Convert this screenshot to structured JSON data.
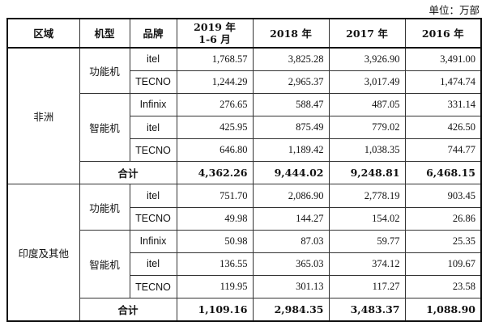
{
  "unit_label": "单位：万部",
  "headers": {
    "region": "区域",
    "type": "机型",
    "brand": "品牌",
    "y2019_line1": "2019 年",
    "y2019_line2": "1-6 月",
    "y2018": "2018 年",
    "y2017": "2017 年",
    "y2016": "2016 年"
  },
  "regions": [
    {
      "name": "非洲",
      "groups": [
        {
          "type": "功能机",
          "rows": [
            {
              "brand": "itel",
              "v2019": "1,768.57",
              "v2018": "3,825.28",
              "v2017": "3,926.90",
              "v2016": "3,491.00"
            },
            {
              "brand": "TECNO",
              "v2019": "1,244.29",
              "v2018": "2,965.37",
              "v2017": "3,017.49",
              "v2016": "1,474.74"
            }
          ]
        },
        {
          "type": "智能机",
          "rows": [
            {
              "brand": "Infinix",
              "v2019": "276.65",
              "v2018": "588.47",
              "v2017": "487.05",
              "v2016": "331.14"
            },
            {
              "brand": "itel",
              "v2019": "425.95",
              "v2018": "875.49",
              "v2017": "779.02",
              "v2016": "426.50"
            },
            {
              "brand": "TECNO",
              "v2019": "646.80",
              "v2018": "1,189.42",
              "v2017": "1,038.35",
              "v2016": "744.77"
            }
          ]
        }
      ],
      "total": {
        "label": "合计",
        "v2019": "4,362.26",
        "v2018": "9,444.02",
        "v2017": "9,248.81",
        "v2016": "6,468.15"
      }
    },
    {
      "name": "印度及其他",
      "groups": [
        {
          "type": "功能机",
          "rows": [
            {
              "brand": "itel",
              "v2019": "751.70",
              "v2018": "2,086.90",
              "v2017": "2,778.19",
              "v2016": "903.45"
            },
            {
              "brand": "TECNO",
              "v2019": "49.98",
              "v2018": "144.27",
              "v2017": "154.02",
              "v2016": "26.86"
            }
          ]
        },
        {
          "type": "智能机",
          "rows": [
            {
              "brand": "Infinix",
              "v2019": "50.98",
              "v2018": "87.03",
              "v2017": "59.77",
              "v2016": "25.35"
            },
            {
              "brand": "itel",
              "v2019": "136.55",
              "v2018": "365.03",
              "v2017": "374.12",
              "v2016": "109.67"
            },
            {
              "brand": "TECNO",
              "v2019": "119.95",
              "v2018": "301.13",
              "v2017": "117.27",
              "v2016": "23.58"
            }
          ]
        }
      ],
      "total": {
        "label": "合计",
        "v2019": "1,109.16",
        "v2018": "2,984.35",
        "v2017": "3,483.37",
        "v2016": "1,088.90"
      }
    }
  ]
}
